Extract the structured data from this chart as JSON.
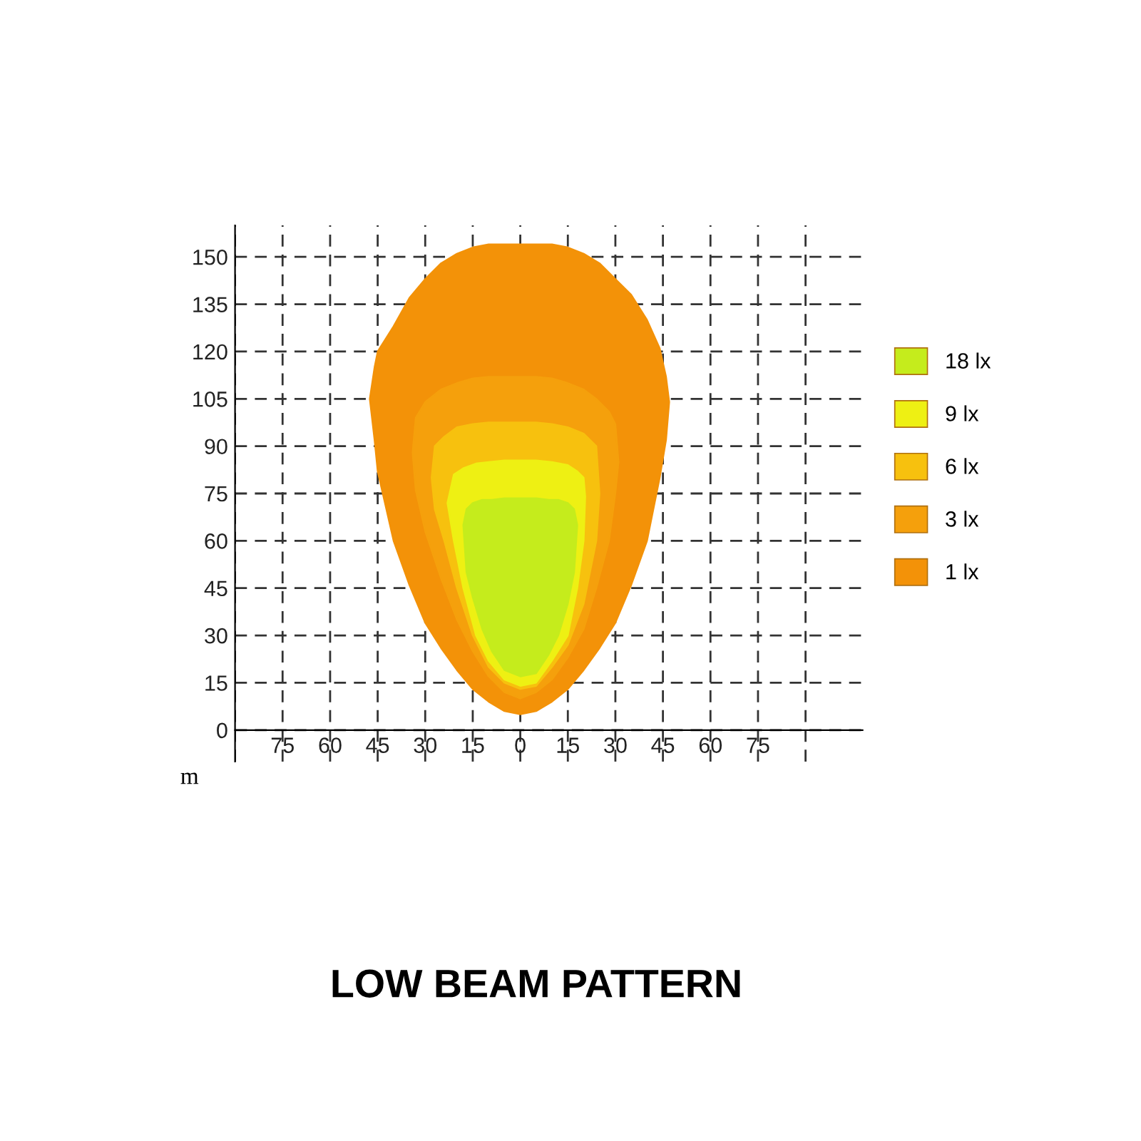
{
  "chart_data": {
    "type": "area",
    "title": "LOW BEAM PATTERN",
    "annotations": [
      "m"
    ],
    "xlim": [
      -90,
      108
    ],
    "ylim": [
      -10,
      160
    ],
    "xticks": [
      {
        "value": -90,
        "label": null
      },
      {
        "value": -75,
        "label": "75"
      },
      {
        "value": -60,
        "label": "60"
      },
      {
        "value": -45,
        "label": "45"
      },
      {
        "value": -30,
        "label": "30"
      },
      {
        "value": -15,
        "label": "15"
      },
      0,
      15,
      30,
      45,
      60,
      75,
      {
        "value": 90,
        "label": null
      }
    ],
    "yticks": [
      0,
      15,
      30,
      45,
      60,
      75,
      90,
      105,
      120,
      135,
      150
    ],
    "grid": true,
    "legend": "right",
    "line_style": "dashed",
    "series": [
      {
        "name": "18 lx",
        "color": "#c5ec1c",
        "x": [
          -18,
          -17,
          -15,
          -12,
          -9,
          -5,
          0,
          5,
          9,
          12,
          15,
          17,
          18,
          17,
          15,
          12,
          9,
          5,
          0,
          -5,
          -9,
          -12,
          -15,
          -17
        ],
        "values": [
          65,
          50,
          42,
          32,
          25,
          19,
          17,
          18,
          24,
          30,
          40,
          50,
          65,
          70,
          72,
          73,
          73,
          73.5,
          73.5,
          73.5,
          73,
          73,
          72,
          70
        ]
      },
      {
        "name": "9 lx",
        "color": "#eef013",
        "x": [
          -23,
          -21,
          -18,
          -14,
          -10,
          -5,
          0,
          5,
          10,
          15,
          18,
          20,
          20.5,
          20,
          18,
          15,
          10,
          5,
          0,
          -5,
          -10,
          -14,
          -18,
          -21
        ],
        "values": [
          72,
          60,
          45,
          30,
          22,
          16,
          14,
          15,
          22,
          30,
          45,
          60,
          74,
          80,
          82,
          84,
          85,
          85.5,
          85.5,
          85.5,
          85,
          84.5,
          83,
          81
        ]
      },
      {
        "name": "6 lx",
        "color": "#f7c10e",
        "x": [
          -28,
          -27,
          -24,
          -20,
          -15,
          -10,
          -5,
          0,
          5,
          10,
          15,
          20,
          24,
          25,
          24,
          20,
          15,
          10,
          5,
          0,
          -5,
          -10,
          -15,
          -20,
          -24,
          -27
        ],
        "values": [
          80,
          70,
          60,
          45,
          30,
          20,
          15,
          13,
          14,
          20,
          27,
          40,
          60,
          75,
          90,
          94,
          96,
          97,
          97.5,
          97.5,
          97.5,
          97.5,
          97,
          96,
          93,
          90
        ]
      },
      {
        "name": "3 lx",
        "color": "#f5a00c",
        "x": [
          -34,
          -33,
          -30,
          -25,
          -20,
          -15,
          -10,
          -5,
          0,
          5,
          10,
          15,
          20,
          24,
          28,
          30,
          31,
          30,
          28,
          24,
          20,
          15,
          10,
          5,
          0,
          -5,
          -10,
          -15,
          -20,
          -25,
          -30,
          -33
        ],
        "values": [
          88,
          76,
          63,
          48,
          35,
          25,
          17,
          12,
          10,
          12,
          16,
          23,
          32,
          45,
          60,
          75,
          85,
          97,
          101,
          105,
          108,
          110,
          111.5,
          112,
          112,
          112,
          112,
          111.5,
          110,
          108,
          104,
          99
        ]
      },
      {
        "name": "1 lx",
        "color": "#f39208",
        "x": [
          -47.5,
          -46,
          -45,
          -40,
          -35,
          -30,
          -25,
          -20,
          -15,
          -10,
          -5,
          0,
          5,
          10,
          15,
          20,
          25,
          30,
          35,
          40,
          44,
          46,
          47,
          46,
          44,
          40,
          35,
          30,
          25,
          20,
          15,
          10,
          5,
          0,
          -5,
          -10,
          -15,
          -20,
          -25,
          -30,
          -35,
          -40,
          -45,
          -46
        ],
        "values": [
          105,
          92,
          82,
          60,
          46,
          34,
          26,
          19,
          13,
          9,
          6,
          5,
          6,
          9,
          13,
          19,
          26,
          34,
          46,
          60,
          80,
          92,
          104,
          112,
          121,
          130,
          138,
          143,
          148,
          151,
          153,
          154,
          154,
          154,
          154,
          154,
          153,
          151,
          148,
          143,
          137,
          128,
          120,
          115
        ]
      }
    ]
  }
}
